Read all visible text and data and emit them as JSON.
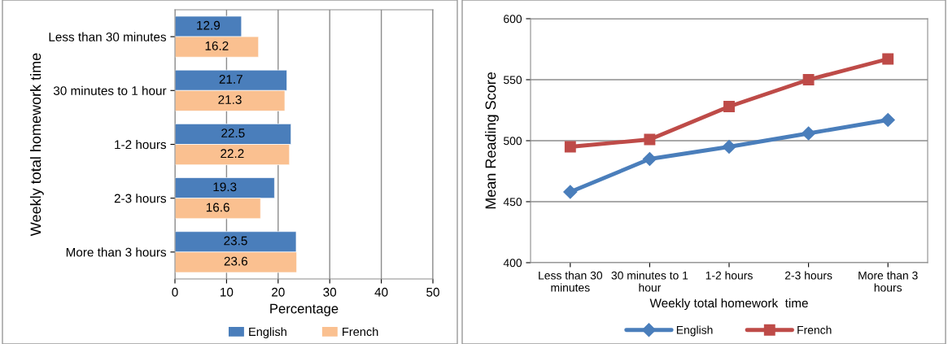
{
  "chart_data": [
    {
      "type": "bar",
      "orientation": "horizontal",
      "ylabel": "Weekly total homework time",
      "xlabel": "Percentage",
      "categories": [
        "Less than 30 minutes",
        "30 minutes to 1 hour",
        "1-2 hours",
        "2-3 hours",
        "More than 3 hours"
      ],
      "series": [
        {
          "name": "English",
          "color": "#4a7ebb",
          "values": [
            12.9,
            21.7,
            22.5,
            19.3,
            23.5
          ]
        },
        {
          "name": "French",
          "color": "#fac090",
          "values": [
            16.2,
            21.3,
            22.2,
            16.6,
            23.6
          ]
        }
      ],
      "xlim": [
        0,
        50
      ],
      "xticks": [
        0,
        10,
        20,
        30,
        40,
        50
      ],
      "grid": "x",
      "legend": "bottom",
      "data_labels": true
    },
    {
      "type": "line",
      "ylabel": "Mean Reading Score",
      "xlabel": "Weekly total homework  time",
      "categories": [
        "Less than 30\nminutes",
        "30 minutes to 1\nhour",
        "1-2 hours",
        "2-3 hours",
        "More than 3\nhours"
      ],
      "series": [
        {
          "name": "English",
          "color": "#4a7ebb",
          "marker": "diamond",
          "values": [
            458,
            485,
            495,
            506,
            517
          ]
        },
        {
          "name": "French",
          "color": "#be4b48",
          "marker": "square",
          "values": [
            495,
            501,
            528,
            550,
            567
          ]
        }
      ],
      "ylim": [
        400,
        600
      ],
      "yticks": [
        400,
        450,
        500,
        550,
        600
      ],
      "grid": "y",
      "legend": "bottom"
    }
  ]
}
